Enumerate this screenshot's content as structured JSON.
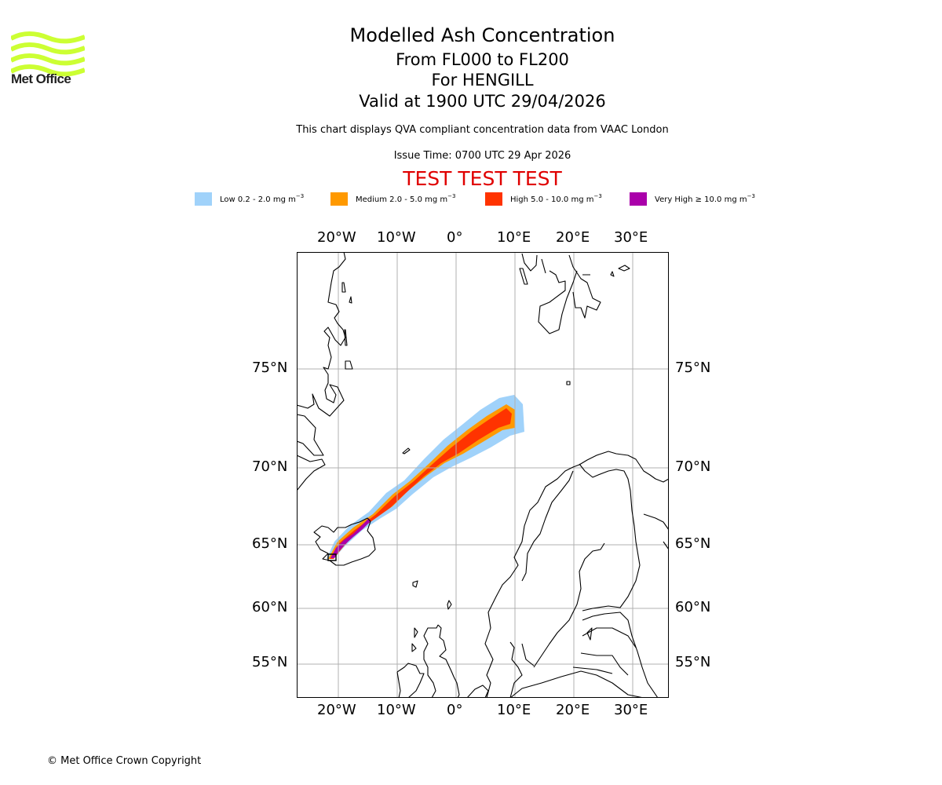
{
  "branding": {
    "logo_text": "Met Office",
    "logo_color": "#ccff33",
    "copyright": "© Met Office Crown Copyright"
  },
  "header": {
    "title": "Modelled Ash Concentration",
    "levels": "From FL000 to FL200",
    "volcano": "For HENGILL",
    "valid": "Valid at 1900 UTC 29/04/2026",
    "subtitle": "This chart displays QVA compliant concentration data from VAAC London",
    "issue_time": "Issue Time: 0700 UTC 29 Apr 2026",
    "test_banner": "TEST TEST TEST",
    "test_color": "#e00000"
  },
  "legend": [
    {
      "label": "Low 0.2 - 2.0 mg m",
      "exp": "−3",
      "color": "#a0d2fa",
      "icon": "low-swatch"
    },
    {
      "label": "Medium 2.0 - 5.0 mg m",
      "exp": "−3",
      "color": "#ff9900",
      "icon": "medium-swatch"
    },
    {
      "label": "High 5.0 - 10.0 mg m",
      "exp": "−3",
      "color": "#ff3300",
      "icon": "high-swatch"
    },
    {
      "label": "Very High  ≥  10.0 mg m",
      "exp": "−3",
      "color": "#aa00aa",
      "icon": "very-high-swatch"
    }
  ],
  "map": {
    "projection": "polar stereographic",
    "extent": {
      "lon_min": -27,
      "lon_max": 36,
      "lat_min": 52,
      "lat_max": 81
    },
    "lon_ticks": [
      {
        "value": -20,
        "label": "20°W"
      },
      {
        "value": -10,
        "label": "10°W"
      },
      {
        "value": 0,
        "label": "0°"
      },
      {
        "value": 10,
        "label": "10°E"
      },
      {
        "value": 20,
        "label": "20°E"
      },
      {
        "value": 30,
        "label": "30°E"
      }
    ],
    "lat_ticks": [
      {
        "value": 75,
        "label": "75°N"
      },
      {
        "value": 70,
        "label": "70°N"
      },
      {
        "value": 65,
        "label": "65°N"
      },
      {
        "value": 60,
        "label": "60°N"
      },
      {
        "value": 55,
        "label": "55°N"
      }
    ],
    "grid": true,
    "plume": {
      "source": "Iceland (Hengill)",
      "direction": "north-east towards 73°N 7°E",
      "levels_present": [
        "Low",
        "Medium",
        "High",
        "Very High"
      ]
    }
  }
}
